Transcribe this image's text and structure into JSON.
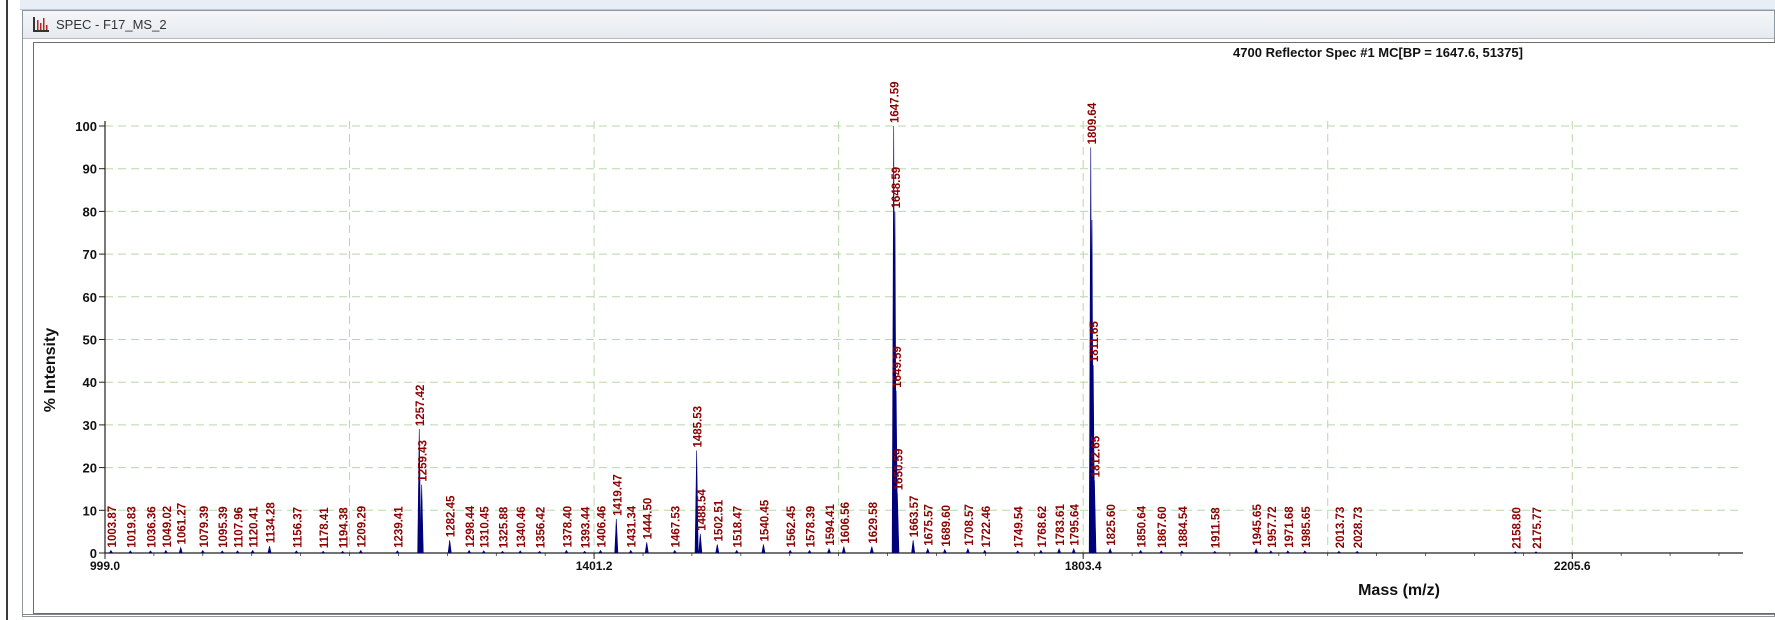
{
  "window": {
    "title": "SPEC - F17_MS_2"
  },
  "chart_data": {
    "type": "line",
    "title": "4700 Reflector Spec #1 MC[BP = 1647.6, 51375]",
    "xlabel": "Mass (m/z)",
    "ylabel": "% Intensity",
    "xlim": [
      999.0,
      2346.0
    ],
    "ylim": [
      0,
      100
    ],
    "x_ticks": [
      999.0,
      1401.2,
      1803.4,
      2205.6
    ],
    "x_tick_labels": [
      "999.0",
      "1401.2",
      "1803.4",
      "2205.6"
    ],
    "y_ticks": [
      0,
      10,
      20,
      30,
      40,
      50,
      60,
      70,
      80,
      90,
      100
    ],
    "grid": true,
    "colors": {
      "spectrum": "#00007a",
      "label": "#8b0000",
      "grid": "#b8d8a8",
      "axis": "#222222"
    },
    "peaks": [
      {
        "x": 1003.87,
        "y": 0.6
      },
      {
        "x": 1019.83,
        "y": 0.5
      },
      {
        "x": 1036.36,
        "y": 0.5
      },
      {
        "x": 1049.02,
        "y": 0.6
      },
      {
        "x": 1061.27,
        "y": 1.3
      },
      {
        "x": 1079.39,
        "y": 0.6
      },
      {
        "x": 1095.39,
        "y": 0.5
      },
      {
        "x": 1107.96,
        "y": 0.5
      },
      {
        "x": 1120.41,
        "y": 0.6
      },
      {
        "x": 1134.28,
        "y": 1.6
      },
      {
        "x": 1156.37,
        "y": 0.5
      },
      {
        "x": 1178.41,
        "y": 0.4
      },
      {
        "x": 1194.38,
        "y": 0.4
      },
      {
        "x": 1209.29,
        "y": 0.6
      },
      {
        "x": 1239.41,
        "y": 0.5
      },
      {
        "x": 1257.42,
        "y": 29.0
      },
      {
        "x": 1259.43,
        "y": 16.0
      },
      {
        "x": 1282.45,
        "y": 3.0
      },
      {
        "x": 1298.44,
        "y": 0.6
      },
      {
        "x": 1310.45,
        "y": 0.5
      },
      {
        "x": 1325.88,
        "y": 0.4
      },
      {
        "x": 1340.46,
        "y": 0.5
      },
      {
        "x": 1356.42,
        "y": 0.4
      },
      {
        "x": 1378.4,
        "y": 0.6
      },
      {
        "x": 1393.44,
        "y": 0.4
      },
      {
        "x": 1406.46,
        "y": 0.6
      },
      {
        "x": 1419.47,
        "y": 8.0
      },
      {
        "x": 1431.34,
        "y": 0.6
      },
      {
        "x": 1444.5,
        "y": 2.5
      },
      {
        "x": 1467.53,
        "y": 0.6
      },
      {
        "x": 1485.53,
        "y": 24.0
      },
      {
        "x": 1488.54,
        "y": 4.5
      },
      {
        "x": 1502.51,
        "y": 2.0
      },
      {
        "x": 1518.47,
        "y": 0.6
      },
      {
        "x": 1540.45,
        "y": 2.0
      },
      {
        "x": 1562.45,
        "y": 0.6
      },
      {
        "x": 1578.39,
        "y": 0.6
      },
      {
        "x": 1594.41,
        "y": 1.0
      },
      {
        "x": 1606.56,
        "y": 1.5
      },
      {
        "x": 1629.58,
        "y": 1.5
      },
      {
        "x": 1647.59,
        "y": 100.0
      },
      {
        "x": 1648.59,
        "y": 80.0
      },
      {
        "x": 1649.59,
        "y": 38.0
      },
      {
        "x": 1650.59,
        "y": 14.0
      },
      {
        "x": 1663.57,
        "y": 3.0
      },
      {
        "x": 1675.57,
        "y": 1.0
      },
      {
        "x": 1689.6,
        "y": 0.8
      },
      {
        "x": 1708.57,
        "y": 1.0
      },
      {
        "x": 1722.46,
        "y": 0.6
      },
      {
        "x": 1749.54,
        "y": 0.5
      },
      {
        "x": 1768.62,
        "y": 0.6
      },
      {
        "x": 1783.61,
        "y": 1.0
      },
      {
        "x": 1795.64,
        "y": 1.0
      },
      {
        "x": 1809.64,
        "y": 95.0
      },
      {
        "x": 1810.64,
        "y": 78.0
      },
      {
        "x": 1811.65,
        "y": 44.0
      },
      {
        "x": 1812.65,
        "y": 17.0
      },
      {
        "x": 1825.6,
        "y": 1.0
      },
      {
        "x": 1850.64,
        "y": 0.6
      },
      {
        "x": 1867.6,
        "y": 0.5
      },
      {
        "x": 1884.54,
        "y": 0.5
      },
      {
        "x": 1911.58,
        "y": 0.4
      },
      {
        "x": 1945.65,
        "y": 1.0
      },
      {
        "x": 1957.72,
        "y": 0.5
      },
      {
        "x": 1971.68,
        "y": 0.5
      },
      {
        "x": 1985.65,
        "y": 0.5
      },
      {
        "x": 2013.73,
        "y": 0.4
      },
      {
        "x": 2028.73,
        "y": 0.4
      },
      {
        "x": 2158.8,
        "y": 0.3
      },
      {
        "x": 2175.77,
        "y": 0.3
      }
    ],
    "labels": [
      {
        "text": "1003.87",
        "x": 1003.87,
        "y": 0.6
      },
      {
        "text": "1019.83",
        "x": 1019.83,
        "y": 0.5
      },
      {
        "text": "1036.36",
        "x": 1036.36,
        "y": 0.5
      },
      {
        "text": "1049.02",
        "x": 1049.02,
        "y": 0.6
      },
      {
        "text": "1061.27",
        "x": 1061.27,
        "y": 1.3
      },
      {
        "text": "1079.39",
        "x": 1079.39,
        "y": 0.6
      },
      {
        "text": "1095.39",
        "x": 1095.39,
        "y": 0.5
      },
      {
        "text": "1107.96",
        "x": 1107.96,
        "y": 0.5
      },
      {
        "text": "1120.41",
        "x": 1120.41,
        "y": 0.6
      },
      {
        "text": "1134.28",
        "x": 1134.28,
        "y": 1.6
      },
      {
        "text": "1156.37",
        "x": 1156.37,
        "y": 0.5
      },
      {
        "text": "1178.41",
        "x": 1178.41,
        "y": 0.4
      },
      {
        "text": "1194.38",
        "x": 1194.38,
        "y": 0.4
      },
      {
        "text": "1209.29",
        "x": 1209.29,
        "y": 0.6
      },
      {
        "text": "1239.41",
        "x": 1239.41,
        "y": 0.5
      },
      {
        "text": "1257.42",
        "x": 1257.42,
        "y": 29.0
      },
      {
        "text": "1259.43",
        "x": 1259.43,
        "y": 16.0
      },
      {
        "text": "1282.45",
        "x": 1282.45,
        "y": 3.0
      },
      {
        "text": "1298.44",
        "x": 1298.44,
        "y": 0.6
      },
      {
        "text": "1310.45",
        "x": 1310.45,
        "y": 0.5
      },
      {
        "text": "1325.88",
        "x": 1325.88,
        "y": 0.4
      },
      {
        "text": "1340.46",
        "x": 1340.46,
        "y": 0.5
      },
      {
        "text": "1356.42",
        "x": 1356.42,
        "y": 0.4
      },
      {
        "text": "1378.40",
        "x": 1378.4,
        "y": 0.6
      },
      {
        "text": "1393.44",
        "x": 1393.44,
        "y": 0.4
      },
      {
        "text": "1406.46",
        "x": 1406.46,
        "y": 0.6
      },
      {
        "text": "1419.47",
        "x": 1419.47,
        "y": 8.0
      },
      {
        "text": "1431.34",
        "x": 1431.34,
        "y": 0.6
      },
      {
        "text": "1444.50",
        "x": 1444.5,
        "y": 2.5
      },
      {
        "text": "1467.53",
        "x": 1467.53,
        "y": 0.6
      },
      {
        "text": "1485.53",
        "x": 1485.53,
        "y": 24.0
      },
      {
        "text": "1488.54",
        "x": 1488.54,
        "y": 4.5
      },
      {
        "text": "1502.51",
        "x": 1502.51,
        "y": 2.0
      },
      {
        "text": "1518.47",
        "x": 1518.47,
        "y": 0.6
      },
      {
        "text": "1540.45",
        "x": 1540.45,
        "y": 2.0
      },
      {
        "text": "1562.45",
        "x": 1562.45,
        "y": 0.6
      },
      {
        "text": "1578.39",
        "x": 1578.39,
        "y": 0.6
      },
      {
        "text": "1594.41",
        "x": 1594.41,
        "y": 1.0
      },
      {
        "text": "1606.56",
        "x": 1606.56,
        "y": 1.5
      },
      {
        "text": "1629.58",
        "x": 1629.58,
        "y": 1.5
      },
      {
        "text": "1647.59",
        "x": 1647.59,
        "y": 100.0
      },
      {
        "text": "1648.59",
        "x": 1648.59,
        "y": 80.0
      },
      {
        "text": "1649.59",
        "x": 1649.59,
        "y": 38.0
      },
      {
        "text": "1650.59",
        "x": 1650.59,
        "y": 14.0
      },
      {
        "text": "1663.57",
        "x": 1663.57,
        "y": 3.0
      },
      {
        "text": "1675.57",
        "x": 1675.57,
        "y": 1.0
      },
      {
        "text": "1689.60",
        "x": 1689.6,
        "y": 0.8
      },
      {
        "text": "1708.57",
        "x": 1708.57,
        "y": 1.0
      },
      {
        "text": "1722.46",
        "x": 1722.46,
        "y": 0.6
      },
      {
        "text": "1749.54",
        "x": 1749.54,
        "y": 0.5
      },
      {
        "text": "1768.62",
        "x": 1768.62,
        "y": 0.6
      },
      {
        "text": "1783.61",
        "x": 1783.61,
        "y": 1.0
      },
      {
        "text": "1795.64",
        "x": 1795.64,
        "y": 1.0
      },
      {
        "text": "1809.64",
        "x": 1809.64,
        "y": 95.0
      },
      {
        "text": "1811.65",
        "x": 1811.65,
        "y": 44.0
      },
      {
        "text": "1812.65",
        "x": 1812.65,
        "y": 17.0
      },
      {
        "text": "1825.60",
        "x": 1825.6,
        "y": 1.0
      },
      {
        "text": "1850.64",
        "x": 1850.64,
        "y": 0.6
      },
      {
        "text": "1867.60",
        "x": 1867.6,
        "y": 0.5
      },
      {
        "text": "1884.54",
        "x": 1884.54,
        "y": 0.5
      },
      {
        "text": "1911.58",
        "x": 1911.58,
        "y": 0.4
      },
      {
        "text": "1945.65",
        "x": 1945.65,
        "y": 1.0
      },
      {
        "text": "1957.72",
        "x": 1957.72,
        "y": 0.5
      },
      {
        "text": "1971.68",
        "x": 1971.68,
        "y": 0.5
      },
      {
        "text": "1985.65",
        "x": 1985.65,
        "y": 0.5
      },
      {
        "text": "2013.73",
        "x": 2013.73,
        "y": 0.4
      },
      {
        "text": "2028.73",
        "x": 2028.73,
        "y": 0.4
      },
      {
        "text": "2158.80",
        "x": 2158.8,
        "y": 0.3
      },
      {
        "text": "2175.77",
        "x": 2175.77,
        "y": 0.3
      }
    ]
  }
}
